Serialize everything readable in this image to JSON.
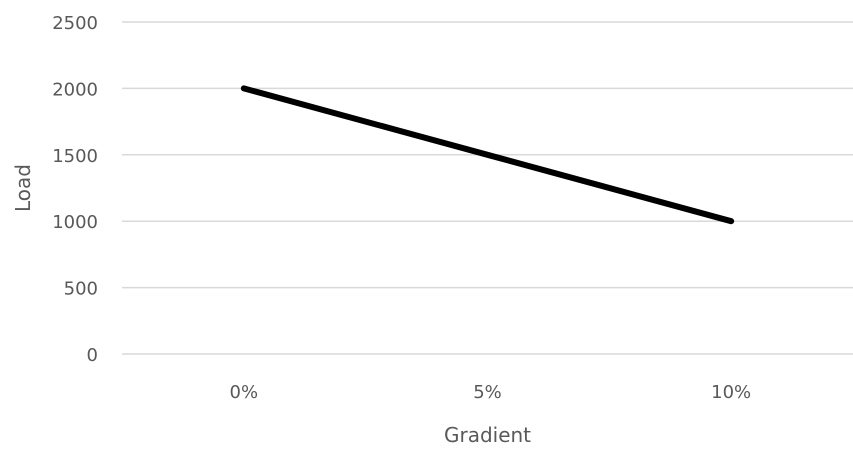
{
  "chart_data": {
    "type": "line",
    "title": "",
    "xlabel": "Gradient",
    "ylabel": "Load",
    "categories": [
      "0%",
      "5%",
      "10%"
    ],
    "series": [
      {
        "values": [
          2000,
          1500,
          1000
        ]
      }
    ],
    "ylim": [
      0,
      2500
    ],
    "yticks": [
      "0",
      "500",
      "1000",
      "1500",
      "2000",
      "2500"
    ],
    "grid": true,
    "legend": "none",
    "colors": {
      "line": "#000000",
      "grid": "#d9d9d9",
      "text": "#595959"
    }
  }
}
